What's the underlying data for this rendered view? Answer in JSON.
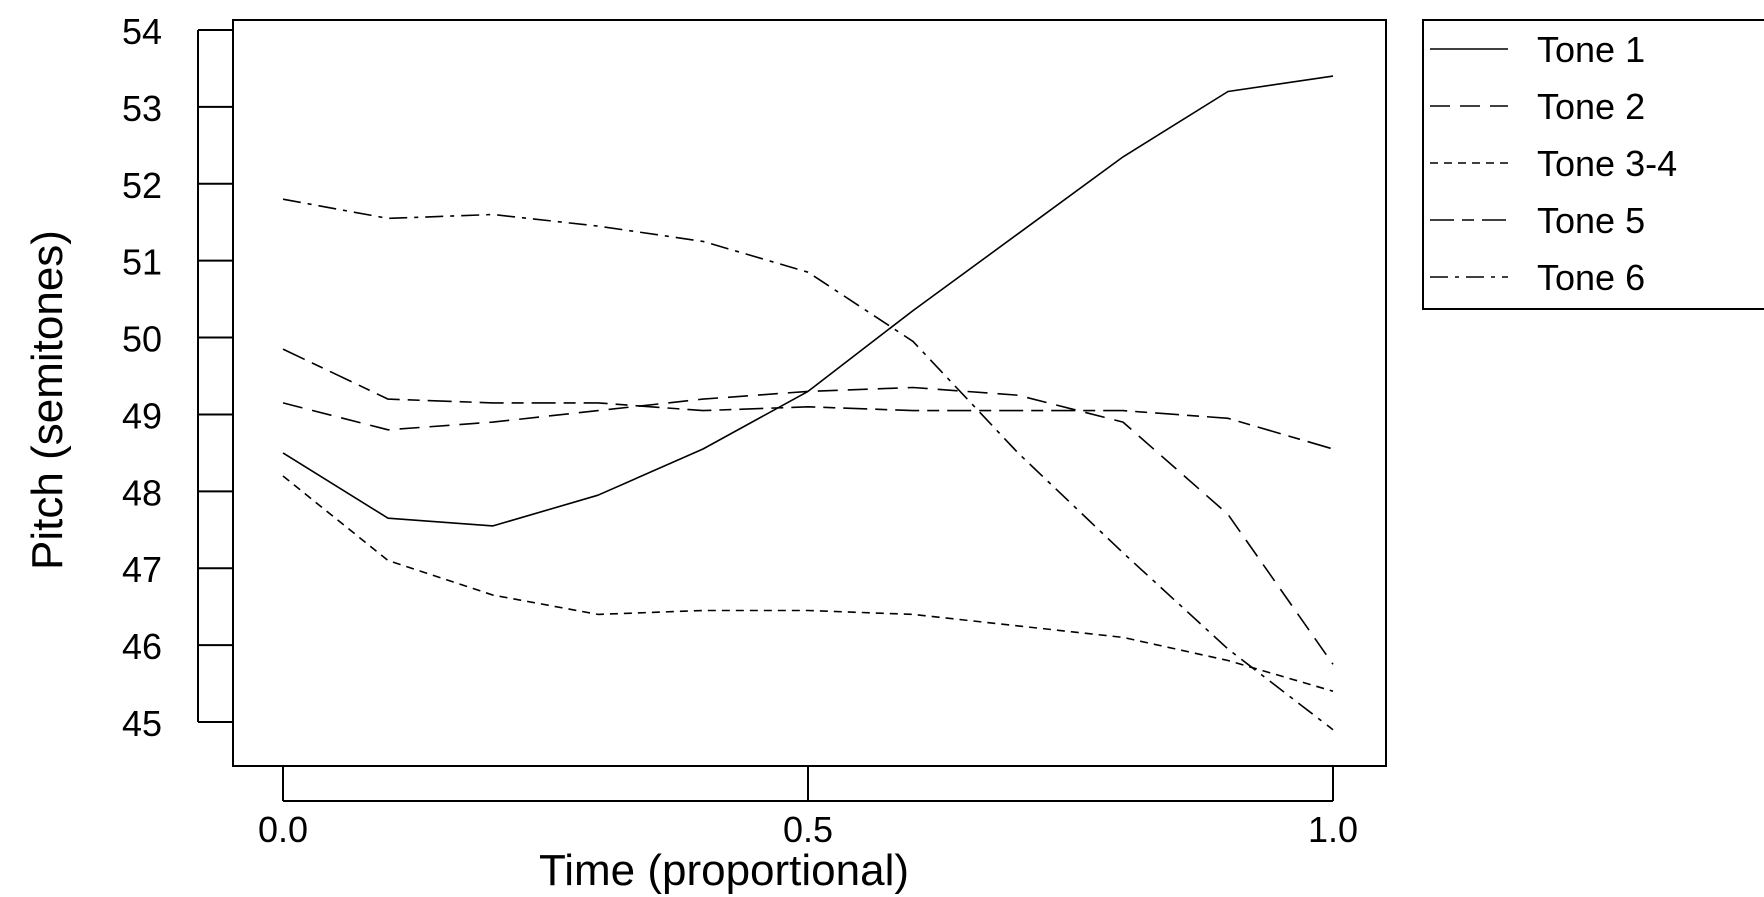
{
  "chart_data": {
    "type": "line",
    "title": "",
    "xlabel": "Time (proportional)",
    "ylabel": "Pitch (semitones)",
    "xlim": [
      -0.05,
      1.05
    ],
    "ylim": [
      44.5,
      54.2
    ],
    "x_ticks": [
      0.0,
      0.5,
      1.0
    ],
    "x_tick_labels": [
      "0.0",
      "0.5",
      "1.0"
    ],
    "y_ticks": [
      45,
      46,
      47,
      48,
      49,
      50,
      51,
      52,
      53,
      54
    ],
    "y_tick_labels": [
      "45",
      "46",
      "47",
      "48",
      "49",
      "50",
      "51",
      "52",
      "53",
      "54"
    ],
    "grid": false,
    "legend_position": "outside-top-right",
    "x": [
      0.0,
      0.1,
      0.2,
      0.3,
      0.4,
      0.5,
      0.6,
      0.7,
      0.8,
      0.9,
      1.0
    ],
    "series": [
      {
        "name": "Tone 1",
        "dash": "solid",
        "values": [
          48.5,
          47.65,
          47.55,
          47.95,
          48.55,
          49.3,
          50.35,
          51.35,
          52.35,
          53.2,
          53.4
        ]
      },
      {
        "name": "Tone 2",
        "dash": "long-dash",
        "values": [
          49.15,
          48.8,
          48.9,
          49.05,
          49.2,
          49.3,
          49.35,
          49.25,
          48.9,
          47.7,
          45.75
        ]
      },
      {
        "name": "Tone 3-4",
        "dash": "short-dash",
        "values": [
          48.2,
          47.1,
          46.65,
          46.4,
          46.45,
          46.45,
          46.4,
          46.25,
          46.1,
          45.8,
          45.4
        ]
      },
      {
        "name": "Tone 5",
        "dash": "long-short-dash",
        "values": [
          49.85,
          49.2,
          49.15,
          49.15,
          49.05,
          49.1,
          49.05,
          49.05,
          49.05,
          48.95,
          48.55
        ]
      },
      {
        "name": "Tone 6",
        "dash": "dash-dot",
        "values": [
          51.8,
          51.55,
          51.6,
          51.45,
          51.25,
          50.85,
          49.95,
          48.5,
          47.2,
          45.95,
          44.9
        ]
      }
    ],
    "colors": {
      "lines": "#000000",
      "background": "#ffffff"
    }
  }
}
